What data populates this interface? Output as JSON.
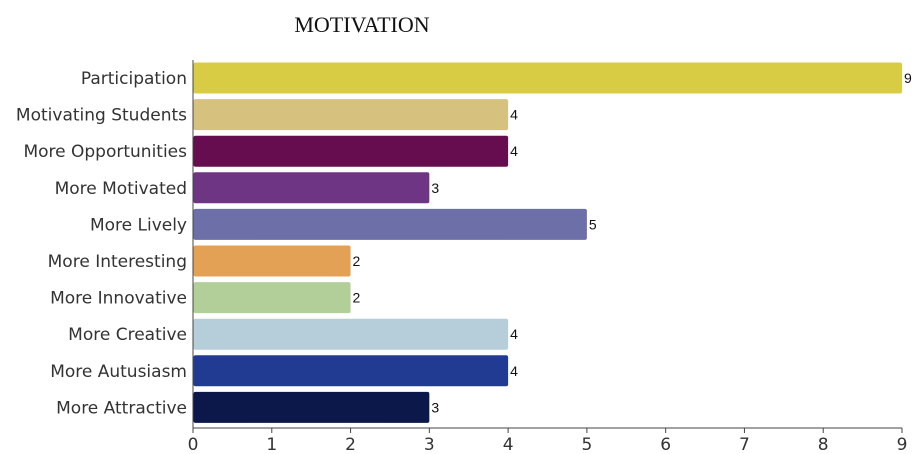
{
  "chart_data": {
    "type": "bar",
    "orientation": "horizontal",
    "title": "MOTIVATION",
    "xlabel": "",
    "ylabel": "",
    "xlim": [
      0,
      9
    ],
    "xticks": [
      "0",
      "1",
      "2",
      "3",
      "4",
      "5",
      "6",
      "7",
      "8",
      "9"
    ],
    "grid": false,
    "legend": "none",
    "categories": [
      "Participation",
      "Motivating Students",
      "More Opportunities",
      "More Motivated",
      "More Lively",
      "More Interesting",
      "More Innovative",
      "More Creative",
      "More Autusiasm",
      "More Attractive"
    ],
    "values": [
      9,
      4,
      4,
      3,
      5,
      2,
      2,
      4,
      4,
      3
    ],
    "colors": [
      "#d9cc45",
      "#d6c27e",
      "#650d4f",
      "#6e3585",
      "#6d6fa8",
      "#e3a155",
      "#b2cf99",
      "#b5ceda",
      "#213b93",
      "#0c1849"
    ]
  }
}
